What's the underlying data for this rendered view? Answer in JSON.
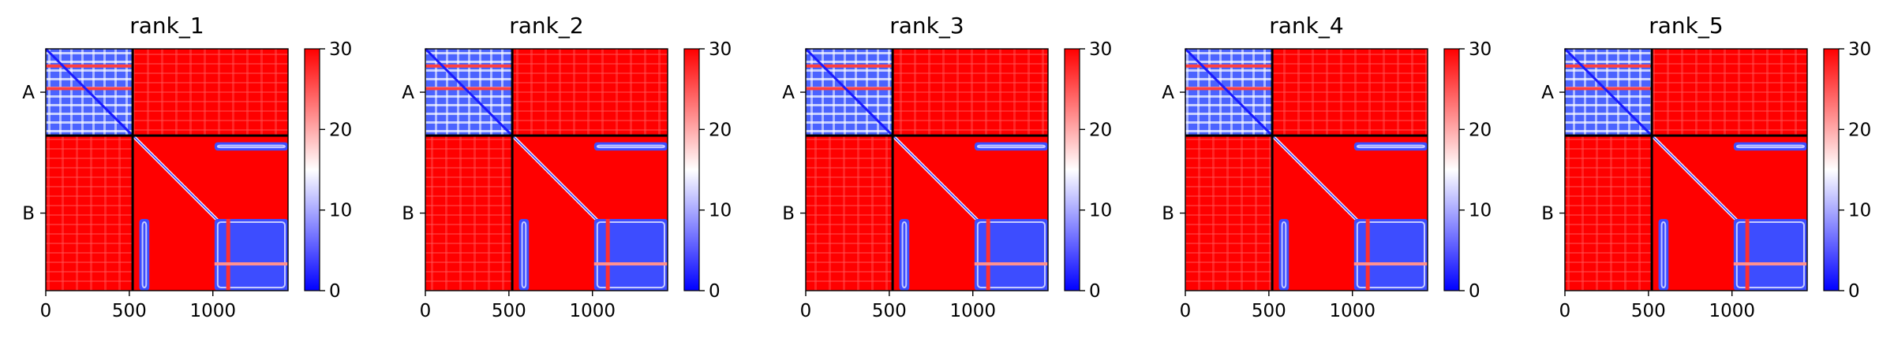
{
  "figure": {
    "background": "#ffffff"
  },
  "chart_data": {
    "type": "heatmap",
    "colormap": [
      "#0000ff",
      "#ffffff",
      "#ff0000"
    ],
    "x_ticks": [
      "0",
      "500",
      "1000"
    ],
    "x_tick_values": [
      0,
      500,
      1000
    ],
    "x_range": [
      0,
      1450
    ],
    "y_ticks": [
      "A",
      "B"
    ],
    "chain_boundary": 520,
    "colorbar": {
      "ticks": [
        "0",
        "10",
        "20",
        "30"
      ],
      "tick_values": [
        0,
        10,
        20,
        30
      ],
      "range": [
        0,
        30
      ]
    },
    "panels": [
      {
        "title": "rank_1"
      },
      {
        "title": "rank_2"
      },
      {
        "title": "rank_3"
      },
      {
        "title": "rank_4"
      },
      {
        "title": "rank_5"
      }
    ]
  }
}
